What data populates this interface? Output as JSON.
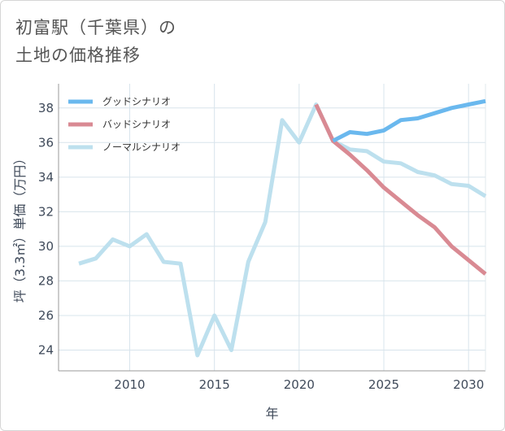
{
  "chart_data": {
    "type": "line",
    "title_lines": [
      "初富駅（千葉県）の",
      "土地の価格推移"
    ],
    "xlabel": "年",
    "ylabel": "坪（3.3㎡）単価（万円）",
    "xlim": [
      2005.8,
      2031.0
    ],
    "ylim": [
      22.8,
      39.4
    ],
    "x_ticks": [
      2010,
      2015,
      2020,
      2025,
      2030
    ],
    "y_ticks": [
      24,
      26,
      28,
      30,
      32,
      34,
      36,
      38
    ],
    "colors": {
      "good": "#6ab8ee",
      "bad": "#d98a93",
      "normal": "#bde0ee",
      "grid": "#d8e4ec",
      "axis": "#999999"
    },
    "series": [
      {
        "key": "normal",
        "name": "ノーマルシナリオ",
        "x": [
          2007,
          2008,
          2009,
          2010,
          2011,
          2012,
          2013,
          2014,
          2015,
          2016,
          2017,
          2018,
          2019,
          2020,
          2021,
          2022,
          2023,
          2024,
          2025,
          2026,
          2027,
          2028,
          2029,
          2030,
          2031
        ],
        "values": [
          29.0,
          29.3,
          30.4,
          30.0,
          30.7,
          29.1,
          29.0,
          23.7,
          26.0,
          24.0,
          29.1,
          31.4,
          37.3,
          36.0,
          38.2,
          36.1,
          35.6,
          35.5,
          34.9,
          34.8,
          34.3,
          34.1,
          33.6,
          33.5,
          32.9
        ]
      },
      {
        "key": "bad",
        "name": "バッドシナリオ",
        "x": [
          2021,
          2022,
          2023,
          2024,
          2025,
          2026,
          2027,
          2028,
          2029,
          2030,
          2031
        ],
        "values": [
          38.2,
          36.1,
          35.3,
          34.4,
          33.4,
          32.6,
          31.8,
          31.1,
          30.0,
          29.2,
          28.4
        ]
      },
      {
        "key": "good",
        "name": "グッドシナリオ",
        "x": [
          2022,
          2023,
          2024,
          2025,
          2026,
          2027,
          2028,
          2029,
          2030,
          2031
        ],
        "values": [
          36.1,
          36.6,
          36.5,
          36.7,
          37.3,
          37.4,
          37.7,
          38.0,
          38.2,
          38.4
        ]
      }
    ],
    "legend": {
      "placement": "top-left",
      "order": [
        "good",
        "bad",
        "normal"
      ]
    }
  }
}
